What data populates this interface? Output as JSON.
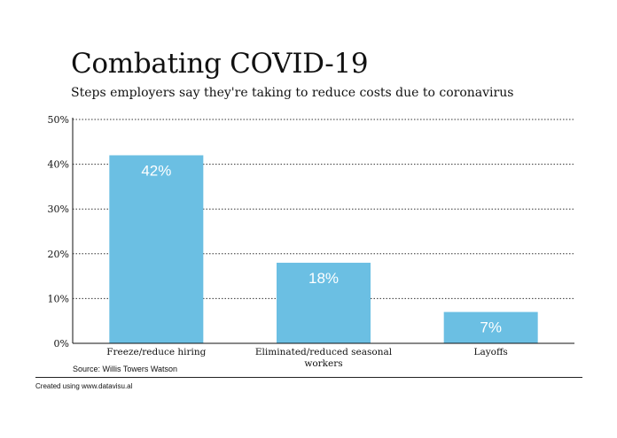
{
  "chart_data": {
    "type": "bar",
    "title": "Combating COVID-19",
    "subtitle": "Steps employers say they're taking to reduce costs due to coronavirus",
    "categories": [
      "Freeze/reduce hiring",
      "Eliminated/reduced seasonal workers",
      "Layoffs"
    ],
    "category_lines": [
      [
        "Freeze/reduce hiring"
      ],
      [
        "Eliminated/reduced seasonal",
        "workers"
      ],
      [
        "Layoffs"
      ]
    ],
    "values": [
      42,
      18,
      7
    ],
    "data_labels": [
      "42%",
      "18%",
      "7%"
    ],
    "ylim": [
      0,
      50
    ],
    "yticks": [
      0,
      10,
      20,
      30,
      40,
      50
    ],
    "ytick_labels": [
      "0%",
      "10%",
      "20%",
      "30%",
      "40%",
      "50%"
    ],
    "xlabel": "",
    "ylabel": "",
    "grid": "horizontal dotted",
    "bar_color": "#6bbfe3",
    "label_color": "#ffffff"
  },
  "source": "Source: Willis Towers Watson",
  "credit": "Created using www.datavisu.al"
}
